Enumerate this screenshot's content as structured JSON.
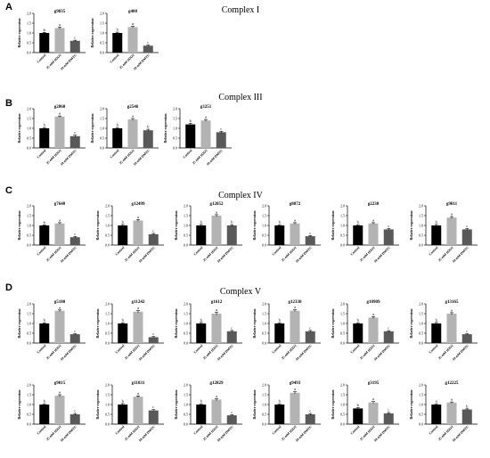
{
  "panels": [
    {
      "letter": "A",
      "title": "Complex I"
    },
    {
      "letter": "B",
      "title": "Complex III"
    },
    {
      "letter": "C",
      "title": "Complex IV"
    },
    {
      "letter": "D",
      "title": "Complex V"
    }
  ],
  "colors": {
    "control": "#000000",
    "h2o2": "#b3b3b3",
    "dmtu": "#595959"
  },
  "chart_data": {
    "type": "bar",
    "categories": [
      "Control",
      "25 mM H2O2",
      "50 mM DMTU"
    ],
    "ylabel": "Relative expression",
    "ylim": [
      0,
      2.0
    ],
    "yticks": [
      "0.0",
      "0.5",
      "1.0",
      "1.5",
      "2.0"
    ],
    "charts": [
      {
        "name": "g9835",
        "values": [
          1.0,
          1.25,
          0.6
        ],
        "errors": [
          0.03,
          0.05,
          0.03
        ],
        "letters": [
          "b",
          "a",
          "c"
        ]
      },
      {
        "name": "g400",
        "values": [
          1.0,
          1.3,
          0.35
        ],
        "errors": [
          0.04,
          0.04,
          0.03
        ],
        "letters": [
          "b",
          "a",
          "c"
        ]
      },
      {
        "name": "g2860",
        "values": [
          1.0,
          1.6,
          0.6
        ],
        "errors": [
          0.04,
          0.03,
          0.05
        ],
        "letters": [
          "b",
          "a",
          "c"
        ]
      },
      {
        "name": "g2546",
        "values": [
          1.0,
          1.45,
          0.9
        ],
        "errors": [
          0.04,
          0.05,
          0.05
        ],
        "letters": [
          "b",
          "a",
          "b"
        ]
      },
      {
        "name": "g3251",
        "values": [
          1.2,
          1.4,
          0.8
        ],
        "errors": [
          0.05,
          0.05,
          0.05
        ],
        "letters": [
          "b",
          "a",
          "c"
        ]
      },
      {
        "name": "g7640",
        "values": [
          1.0,
          1.1,
          0.4
        ],
        "errors": [
          0.03,
          0.04,
          0.04
        ],
        "letters": [
          "b",
          "a",
          "c"
        ]
      },
      {
        "name": "g12499",
        "values": [
          1.0,
          1.25,
          0.55
        ],
        "errors": [
          0.05,
          0.05,
          0.04
        ],
        "letters": [
          "b",
          "a",
          "c"
        ]
      },
      {
        "name": "g12052",
        "values": [
          1.0,
          1.5,
          1.0
        ],
        "errors": [
          0.05,
          0.05,
          0.04
        ],
        "letters": [
          "b",
          "a",
          "b"
        ]
      },
      {
        "name": "g8872",
        "values": [
          1.0,
          1.1,
          0.45
        ],
        "errors": [
          0.04,
          0.04,
          0.03
        ],
        "letters": [
          "b",
          "a",
          "c"
        ]
      },
      {
        "name": "g2230",
        "values": [
          1.0,
          1.1,
          0.8
        ],
        "errors": [
          0.04,
          0.04,
          0.04
        ],
        "letters": [
          "b",
          "a",
          "c"
        ]
      },
      {
        "name": "g9011",
        "values": [
          1.0,
          1.4,
          0.8
        ],
        "errors": [
          0.05,
          0.05,
          0.04
        ],
        "letters": [
          "b",
          "a",
          "c"
        ]
      },
      {
        "name": "g5180",
        "values": [
          1.0,
          1.65,
          0.45
        ],
        "errors": [
          0.04,
          0.04,
          0.03
        ],
        "letters": [
          "b",
          "a",
          "c"
        ]
      },
      {
        "name": "g11242",
        "values": [
          1.0,
          1.6,
          0.3
        ],
        "errors": [
          0.04,
          0.06,
          0.03
        ],
        "letters": [
          "b",
          "a",
          "c"
        ]
      },
      {
        "name": "g1612",
        "values": [
          1.0,
          1.5,
          0.6
        ],
        "errors": [
          0.05,
          0.06,
          0.04
        ],
        "letters": [
          "b",
          "a",
          "c"
        ]
      },
      {
        "name": "g12330",
        "values": [
          1.0,
          1.65,
          0.6
        ],
        "errors": [
          0.04,
          0.05,
          0.04
        ],
        "letters": [
          "b",
          "a",
          "c"
        ]
      },
      {
        "name": "g10909",
        "values": [
          1.0,
          1.3,
          0.6
        ],
        "errors": [
          0.04,
          0.05,
          0.03
        ],
        "letters": [
          "b",
          "a",
          "c"
        ]
      },
      {
        "name": "g13165",
        "values": [
          1.0,
          1.5,
          0.45
        ],
        "errors": [
          0.05,
          0.05,
          0.03
        ],
        "letters": [
          "b",
          "a",
          "c"
        ]
      },
      {
        "name": "g9015",
        "values": [
          1.0,
          1.45,
          0.5
        ],
        "errors": [
          0.04,
          0.05,
          0.04
        ],
        "letters": [
          "b",
          "a",
          "c"
        ]
      },
      {
        "name": "g11031",
        "values": [
          1.0,
          1.4,
          0.7
        ],
        "errors": [
          0.05,
          0.04,
          0.04
        ],
        "letters": [
          "b",
          "a",
          "c"
        ]
      },
      {
        "name": "g12829",
        "values": [
          1.0,
          1.25,
          0.45
        ],
        "errors": [
          0.04,
          0.05,
          0.03
        ],
        "letters": [
          "b",
          "a",
          "c"
        ]
      },
      {
        "name": "g9493",
        "values": [
          1.0,
          1.6,
          0.5
        ],
        "errors": [
          0.04,
          0.05,
          0.04
        ],
        "letters": [
          "b",
          "a",
          "c"
        ]
      },
      {
        "name": "g3195",
        "values": [
          0.8,
          1.1,
          0.55
        ],
        "errors": [
          0.04,
          0.05,
          0.04
        ],
        "letters": [
          "b",
          "a",
          "c"
        ]
      },
      {
        "name": "g12225",
        "values": [
          1.0,
          1.1,
          0.75
        ],
        "errors": [
          0.04,
          0.03,
          0.03
        ],
        "letters": [
          "a",
          "a",
          "b"
        ]
      }
    ]
  }
}
